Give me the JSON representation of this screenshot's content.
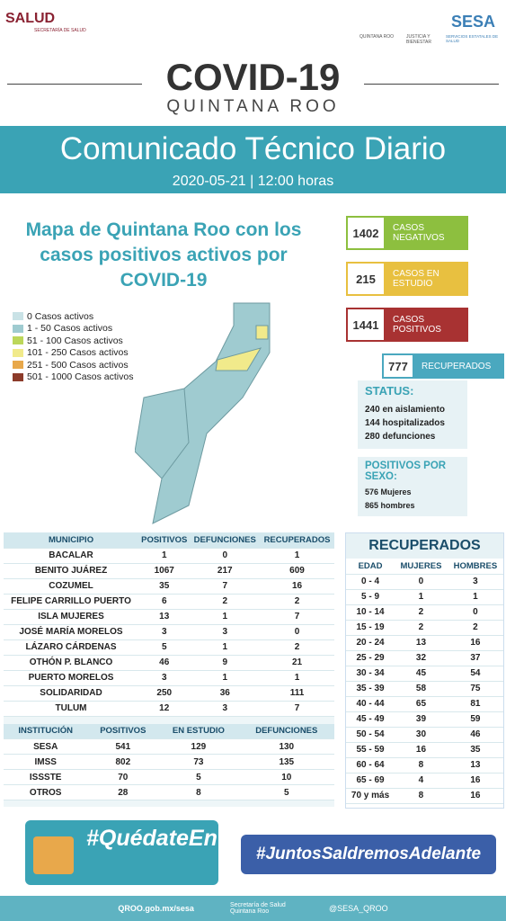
{
  "header": {
    "salud": "SALUD",
    "salud_sub": "SECRETARÍA DE SALUD",
    "logo1": "QUINTANA ROO",
    "logo2": "JUSTICIA Y BIENESTAR",
    "sesa": "SESA",
    "sesa_sub": "SERVICIOS ESTATALES DE SALUD"
  },
  "title": {
    "covid": "COVID-19",
    "region": "QUINTANA ROO",
    "banner": "Comunicado Técnico Diario",
    "date": "2020-05-21 | 12:00 horas"
  },
  "map": {
    "title": "Mapa de Quintana Roo con los casos positivos activos por COVID-19",
    "legend": [
      {
        "label": "0 Casos activos",
        "color": "#c9e2e6"
      },
      {
        "label": "1 - 50 Casos activos",
        "color": "#9fcbd0"
      },
      {
        "label": "51 - 100 Casos activos",
        "color": "#bcd75a"
      },
      {
        "label": "101 - 250 Casos activos",
        "color": "#f1ea8b"
      },
      {
        "label": "251 - 500 Casos activos",
        "color": "#e8a84b"
      },
      {
        "label": "501 - 1000 Casos activos",
        "color": "#8c3b2a"
      }
    ]
  },
  "stats": [
    {
      "value": "1402",
      "label": "CASOS NEGATIVOS",
      "color": "#8dbf3f"
    },
    {
      "value": "215",
      "label": "CASOS EN ESTUDIO",
      "color": "#e8c040"
    },
    {
      "value": "1441",
      "label": "CASOS POSITIVOS",
      "color": "#a83232"
    },
    {
      "value": "777",
      "label": "RECUPERADOS",
      "color": "#4aa8bf"
    }
  ],
  "status": {
    "title": "STATUS:",
    "lines": [
      "240 en aislamiento",
      "144 hospitalizados",
      "280 defunciones"
    ]
  },
  "sexo": {
    "title": "POSITIVOS POR SEXO:",
    "lines": [
      "576 Mujeres",
      "865 hombres"
    ]
  },
  "municipios": {
    "headers": [
      "MUNICIPIO",
      "POSITIVOS",
      "DEFUNCIONES",
      "RECUPERADOS"
    ],
    "rows": [
      [
        "BACALAR",
        1,
        0,
        1
      ],
      [
        "BENITO JUÁREZ",
        1067,
        217,
        609
      ],
      [
        "COZUMEL",
        35,
        7,
        16
      ],
      [
        "FELIPE CARRILLO PUERTO",
        6,
        2,
        2
      ],
      [
        "ISLA MUJERES",
        13,
        1,
        7
      ],
      [
        "JOSÉ MARÍA MORELOS",
        3,
        3,
        0
      ],
      [
        "LÁZARO CÁRDENAS",
        5,
        1,
        2
      ],
      [
        "OTHÓN P. BLANCO",
        46,
        9,
        21
      ],
      [
        "PUERTO MORELOS",
        3,
        1,
        1
      ],
      [
        "SOLIDARIDAD",
        250,
        36,
        111
      ],
      [
        "TULUM",
        12,
        3,
        7
      ]
    ]
  },
  "instituciones": {
    "headers": [
      "INSTITUCIÓN",
      "POSITIVOS",
      "EN ESTUDIO",
      "DEFUNCIONES"
    ],
    "rows": [
      [
        "SESA",
        541,
        129,
        130
      ],
      [
        "IMSS",
        802,
        73,
        135
      ],
      [
        "ISSSTE",
        70,
        5,
        10
      ],
      [
        "OTROS",
        28,
        8,
        5
      ]
    ]
  },
  "recuperados": {
    "title": "RECUPERADOS",
    "headers": [
      "EDAD",
      "MUJERES",
      "HOMBRES"
    ],
    "rows": [
      [
        "0 - 4",
        0,
        3
      ],
      [
        "5 - 9",
        1,
        1
      ],
      [
        "10 - 14",
        2,
        0
      ],
      [
        "15 - 19",
        2,
        2
      ],
      [
        "20 - 24",
        13,
        16
      ],
      [
        "25 - 29",
        32,
        37
      ],
      [
        "30 - 34",
        45,
        54
      ],
      [
        "35 - 39",
        58,
        75
      ],
      [
        "40 - 44",
        65,
        81
      ],
      [
        "45 - 49",
        39,
        59
      ],
      [
        "50 - 54",
        30,
        46
      ],
      [
        "55 - 59",
        16,
        35
      ],
      [
        "60 - 64",
        8,
        13
      ],
      [
        "65 - 69",
        4,
        16
      ],
      [
        "70 y más",
        8,
        16
      ]
    ]
  },
  "footer": {
    "hashtag1": "#QuédateEnCasa",
    "hashtag2": "#JuntosSaldremosAdelante",
    "url": "QROO.gob.mx/sesa",
    "secretaria": "Secretaría de Salud Quintana Roo",
    "twitter": "@SESA_QROO"
  }
}
